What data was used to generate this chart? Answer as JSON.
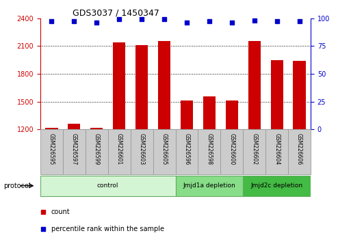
{
  "title": "GDS3037 / 1450347",
  "samples": [
    "GSM226595",
    "GSM226597",
    "GSM226599",
    "GSM226601",
    "GSM226603",
    "GSM226605",
    "GSM226596",
    "GSM226598",
    "GSM226600",
    "GSM226602",
    "GSM226604",
    "GSM226606"
  ],
  "counts": [
    1215,
    1265,
    1220,
    2140,
    2110,
    2150,
    1510,
    1560,
    1510,
    2150,
    1950,
    1940
  ],
  "percentile_ranks": [
    97,
    97,
    96,
    99,
    99,
    99,
    96,
    97,
    96,
    98,
    97,
    97
  ],
  "bar_color": "#cc0000",
  "dot_color": "#0000cc",
  "ylim_left": [
    1200,
    2400
  ],
  "ylim_right": [
    0,
    100
  ],
  "yticks_left": [
    1200,
    1500,
    1800,
    2100,
    2400
  ],
  "yticks_right": [
    0,
    25,
    50,
    75,
    100
  ],
  "groups": [
    {
      "label": "control",
      "start": 0,
      "end": 6,
      "color": "#d4f5d4",
      "edge_color": "#66aa66"
    },
    {
      "label": "Jmjd1a depletion",
      "start": 6,
      "end": 9,
      "color": "#88dd88",
      "edge_color": "#66aa66"
    },
    {
      "label": "Jmjd2c depletion",
      "start": 9,
      "end": 12,
      "color": "#44bb44",
      "edge_color": "#66aa66"
    }
  ],
  "legend_items": [
    {
      "label": "count",
      "color": "#cc0000"
    },
    {
      "label": "percentile rank within the sample",
      "color": "#0000cc"
    }
  ],
  "protocol_label": "protocol",
  "grid_color": "#aaaaaa",
  "tick_color_left": "#cc0000",
  "tick_color_right": "#0000cc",
  "cell_bg": "#cccccc",
  "cell_edge": "#999999"
}
